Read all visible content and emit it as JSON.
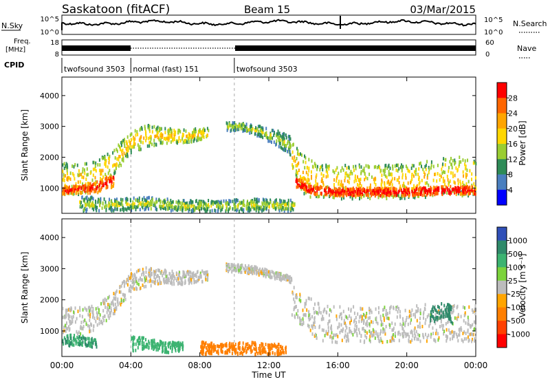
{
  "header": {
    "station": "Saskatoon (fitACF)",
    "beam": "Beam 15",
    "date": "03/Mar/2015"
  },
  "top_panels": {
    "nsky_label": "N.Sky",
    "nsky_ticks": [
      "10^5",
      "10^0"
    ],
    "nsearch_label": "N.Search",
    "nsearch_ticks": [
      "10^5",
      "10^0"
    ],
    "freq_label": "Freq.",
    "freq_unit": "[MHz]",
    "freq_ticks": [
      "18",
      "8"
    ],
    "nave_label": "Nave",
    "nave_ticks": [
      "60",
      "0"
    ],
    "cpid_label": "CPID",
    "cpid_segments": [
      {
        "label": "twofsound 3503",
        "start_h": 0,
        "end_h": 4
      },
      {
        "label": "normal (fast) 151",
        "start_h": 4,
        "end_h": 10
      },
      {
        "label": "twofsound 3503",
        "start_h": 10,
        "end_h": 24
      }
    ]
  },
  "colorbars": {
    "power": {
      "label": "Power [dB]",
      "ticks": [
        "28",
        "24",
        "20",
        "16",
        "12",
        "8",
        "4"
      ],
      "colors": [
        "#ff0000",
        "#ff6600",
        "#ffa500",
        "#ffd700",
        "#9acd32",
        "#2e8b57",
        "#4a7fbf",
        "#0000ff"
      ]
    },
    "velocity": {
      "label": "Velocity [m s⁻¹]",
      "ticks": [
        "1000",
        "500",
        "100",
        "25",
        "-25",
        "-100",
        "-500",
        "-1000"
      ],
      "colors": [
        "#3050b8",
        "#2f8a6a",
        "#3cb371",
        "#7cd33c",
        "#bcbcbc",
        "#ffa500",
        "#ff7f00",
        "#ff4000",
        "#ff0000"
      ]
    }
  },
  "chart_data": [
    {
      "type": "heatmap",
      "title": "",
      "xlabel": "Time UT",
      "ylabel": "Slant Range [km]",
      "xlim": [
        0,
        24
      ],
      "ylim": [
        180,
        4600
      ],
      "x_ticks": [
        "00:00",
        "04:00",
        "08:00",
        "12:00",
        "16:00",
        "20:00",
        "00:00"
      ],
      "y_ticks": [
        1000,
        2000,
        3000,
        4000
      ],
      "colorbar": "Power [dB]",
      "scatter_bands": [
        {
          "t": [
            0,
            1,
            2,
            3,
            4,
            5,
            6,
            7,
            8.5
          ],
          "lo": [
            800,
            850,
            1000,
            1500,
            2200,
            2400,
            2500,
            2500,
            2650
          ],
          "hi": [
            1900,
            1800,
            1950,
            2300,
            2950,
            3100,
            3000,
            2950,
            3000
          ],
          "power": 14
        },
        {
          "t": [
            0,
            1,
            2,
            3
          ],
          "lo": [
            850,
            880,
            900,
            1100
          ],
          "hi": [
            1100,
            1150,
            1250,
            1500
          ],
          "power": 24
        },
        {
          "t": [
            9.5,
            10.5,
            11.5,
            12.5,
            13.3
          ],
          "lo": [
            2900,
            2900,
            2700,
            2400,
            2100
          ],
          "hi": [
            3200,
            3150,
            3050,
            2900,
            2700
          ],
          "power": 10
        },
        {
          "t": [
            13.3,
            14,
            15,
            17,
            19,
            21,
            22,
            23,
            24
          ],
          "lo": [
            1500,
            800,
            700,
            700,
            700,
            750,
            800,
            800,
            800
          ],
          "hi": [
            2700,
            2100,
            1800,
            1800,
            1800,
            1900,
            2000,
            2100,
            2000
          ],
          "power": 14
        },
        {
          "t": [
            13.5,
            14.5,
            16,
            18,
            20,
            22,
            24
          ],
          "lo": [
            1100,
            850,
            800,
            800,
            800,
            850,
            850
          ],
          "hi": [
            1400,
            1100,
            1050,
            1050,
            1050,
            1100,
            1100
          ],
          "power": 26
        },
        {
          "t": [
            1,
            3,
            5,
            7,
            9,
            11,
            13.5
          ],
          "lo": [
            300,
            300,
            350,
            300,
            300,
            300,
            300
          ],
          "hi": [
            800,
            700,
            750,
            650,
            650,
            700,
            650
          ],
          "power": 10
        }
      ]
    },
    {
      "type": "heatmap",
      "title": "",
      "xlabel": "Time UT",
      "ylabel": "Slant Range [km]",
      "xlim": [
        0,
        24
      ],
      "ylim": [
        180,
        4600
      ],
      "x_ticks": [
        "00:00",
        "04:00",
        "08:00",
        "12:00",
        "16:00",
        "20:00",
        "00:00"
      ],
      "y_ticks": [
        1000,
        2000,
        3000,
        4000
      ],
      "colorbar": "Velocity [m s⁻¹]",
      "scatter_bands": [
        {
          "t": [
            0,
            1,
            2,
            3,
            4,
            5,
            6,
            7,
            8.5
          ],
          "lo": [
            900,
            950,
            1100,
            1600,
            2300,
            2500,
            2550,
            2550,
            2650
          ],
          "hi": [
            1800,
            1800,
            1900,
            2300,
            2950,
            3100,
            3000,
            2950,
            3000
          ],
          "velocity": 0
        },
        {
          "t": [
            0,
            1,
            2
          ],
          "lo": [
            550,
            600,
            500
          ],
          "hi": [
            950,
            900,
            800
          ],
          "velocity": 300
        },
        {
          "t": [
            9.5,
            11,
            13.3
          ],
          "lo": [
            2950,
            2900,
            2600
          ],
          "hi": [
            3200,
            3150,
            2800
          ],
          "velocity": 0
        },
        {
          "t": [
            13.3,
            15,
            18,
            21,
            24
          ],
          "lo": [
            1500,
            700,
            650,
            700,
            700
          ],
          "hi": [
            2500,
            1900,
            1800,
            1900,
            1900
          ],
          "velocity": 0
        },
        {
          "t": [
            4,
            5,
            6,
            7
          ],
          "lo": [
            400,
            500,
            350,
            400
          ],
          "hi": [
            900,
            800,
            700,
            700
          ],
          "velocity": 200
        },
        {
          "t": [
            8,
            9.5,
            11,
            13
          ],
          "lo": [
            300,
            300,
            300,
            300
          ],
          "hi": [
            700,
            650,
            700,
            600
          ],
          "velocity": -150
        },
        {
          "t": [
            21.3,
            21.8,
            22.2,
            22.6
          ],
          "lo": [
            1300,
            1400,
            1500,
            1300
          ],
          "hi": [
            1800,
            1900,
            2000,
            1800
          ],
          "velocity": 700
        }
      ]
    }
  ]
}
